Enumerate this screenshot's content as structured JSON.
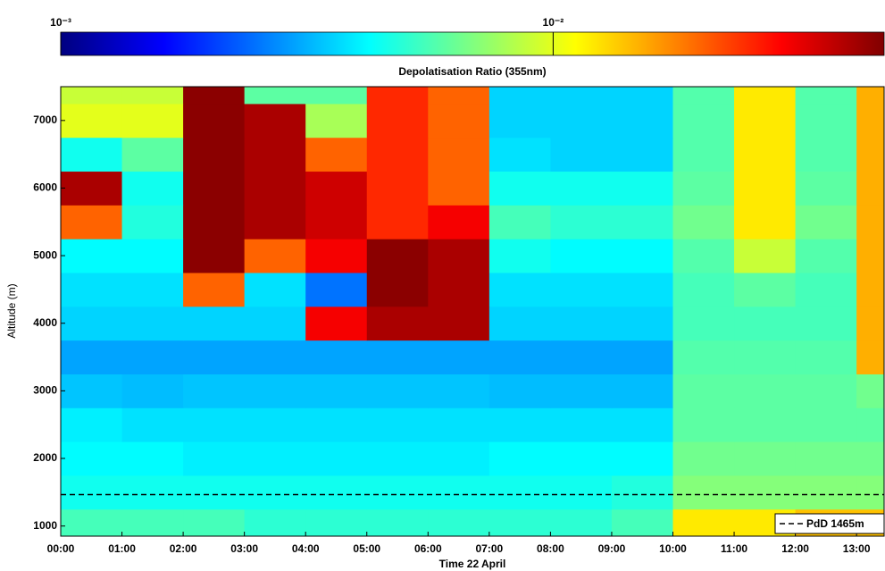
{
  "chart_data": {
    "type": "heatmap",
    "title": "Depolatisation Ratio (355nm)",
    "x_label": "Time 22 April",
    "y_label": "Altitude (m)",
    "xlim": [
      0,
      13.45
    ],
    "ylim": [
      850,
      7500
    ],
    "xticks": [
      {
        "value": 0,
        "label": "00:00"
      },
      {
        "value": 1,
        "label": "01:00"
      },
      {
        "value": 2,
        "label": "02:00"
      },
      {
        "value": 3,
        "label": "03:00"
      },
      {
        "value": 4,
        "label": "04:00"
      },
      {
        "value": 5,
        "label": "05:00"
      },
      {
        "value": 6,
        "label": "06:00"
      },
      {
        "value": 7,
        "label": "07:00"
      },
      {
        "value": 8,
        "label": "08:00"
      },
      {
        "value": 9,
        "label": "09:00"
      },
      {
        "value": 10,
        "label": "10:00"
      },
      {
        "value": 11,
        "label": "11:00"
      },
      {
        "value": 12,
        "label": "12:00"
      },
      {
        "value": 13,
        "label": "13:00"
      }
    ],
    "yticks": [
      1000,
      2000,
      3000,
      4000,
      5000,
      6000,
      7000
    ],
    "x_edges": [
      0,
      1,
      2,
      3,
      4,
      5,
      6,
      7,
      8,
      9,
      10,
      11,
      12,
      13,
      13.45
    ],
    "y_edges": [
      850,
      1250,
      1750,
      2250,
      2750,
      3250,
      3750,
      4250,
      4750,
      5250,
      5750,
      6250,
      6750,
      7250,
      7500
    ],
    "z": [
      [
        0.0055,
        0.0055,
        0.0055,
        0.005,
        0.005,
        0.005,
        0.005,
        0.005,
        0.005,
        0.0055,
        0.012,
        0.012,
        0.014,
        0.014
      ],
      [
        0.0045,
        0.0045,
        0.0045,
        0.0045,
        0.0045,
        0.0045,
        0.0045,
        0.0045,
        0.0045,
        0.0048,
        0.007,
        0.007,
        0.007,
        0.007
      ],
      [
        0.0042,
        0.0042,
        0.004,
        0.004,
        0.004,
        0.004,
        0.004,
        0.0042,
        0.0042,
        0.0042,
        0.0065,
        0.0065,
        0.0065,
        0.0065
      ],
      [
        0.004,
        0.0038,
        0.0038,
        0.0038,
        0.0038,
        0.0038,
        0.0038,
        0.0038,
        0.0038,
        0.0038,
        0.006,
        0.006,
        0.006,
        0.006
      ],
      [
        0.0034,
        0.0033,
        0.0034,
        0.0034,
        0.0034,
        0.0034,
        0.0034,
        0.0033,
        0.0033,
        0.0033,
        0.006,
        0.006,
        0.006,
        0.0065
      ],
      [
        0.003,
        0.003,
        0.003,
        0.003,
        0.003,
        0.003,
        0.003,
        0.003,
        0.003,
        0.003,
        0.0058,
        0.0058,
        0.0058,
        0.015
      ],
      [
        0.0036,
        0.0036,
        0.0036,
        0.0036,
        0.03,
        0.04,
        0.04,
        0.0036,
        0.0036,
        0.0036,
        0.0055,
        0.0055,
        0.0055,
        0.015
      ],
      [
        0.0038,
        0.0038,
        0.02,
        0.0038,
        0.0025,
        0.045,
        0.04,
        0.0038,
        0.0038,
        0.0038,
        0.0055,
        0.006,
        0.0055,
        0.015
      ],
      [
        0.0042,
        0.0042,
        0.045,
        0.02,
        0.03,
        0.045,
        0.04,
        0.0045,
        0.0042,
        0.0042,
        0.0058,
        0.009,
        0.0058,
        0.015
      ],
      [
        0.02,
        0.0048,
        0.045,
        0.04,
        0.035,
        0.025,
        0.03,
        0.0055,
        0.005,
        0.005,
        0.0065,
        0.012,
        0.0065,
        0.015
      ],
      [
        0.04,
        0.0045,
        0.045,
        0.04,
        0.035,
        0.025,
        0.02,
        0.0045,
        0.0045,
        0.0045,
        0.006,
        0.012,
        0.006,
        0.015
      ],
      [
        0.0045,
        0.006,
        0.045,
        0.04,
        0.02,
        0.025,
        0.02,
        0.0038,
        0.0036,
        0.0036,
        0.0058,
        0.012,
        0.0058,
        0.015
      ],
      [
        0.01,
        0.01,
        0.045,
        0.04,
        0.008,
        0.025,
        0.02,
        0.0036,
        0.0036,
        0.0036,
        0.0058,
        0.012,
        0.0058,
        0.015
      ],
      [
        0.009,
        0.009,
        0.045,
        0.006,
        0.006,
        0.025,
        0.02,
        0.0036,
        0.0036,
        0.0036,
        0.0058,
        0.012,
        0.0058,
        0.015
      ]
    ],
    "color_scale": "log",
    "colormap": "jet",
    "clim": [
      0.001,
      0.047
    ],
    "cticks": [
      {
        "value": 0.001,
        "label": "10⁻³"
      },
      {
        "value": 0.01,
        "label": "10⁻²"
      }
    ],
    "reference_line": {
      "value": 1465,
      "label": "PdD 1465m",
      "color": "#000000"
    },
    "legend": "lower right"
  }
}
